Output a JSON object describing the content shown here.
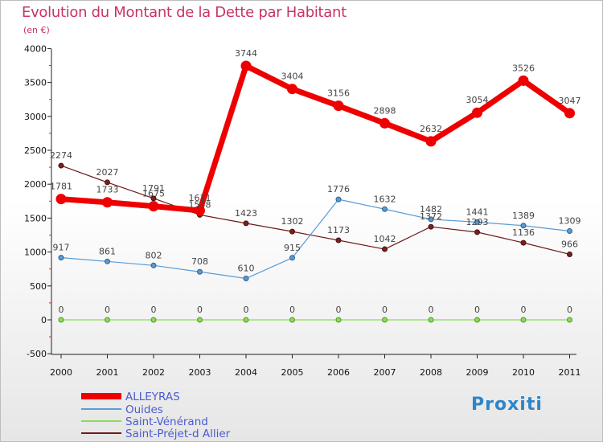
{
  "header": {
    "title": "Evolution du Montant de la Dette par Habitant",
    "subtitle": "(en €)"
  },
  "colors": {
    "title": "#c8336a",
    "ALLEYRAS": "#ee0000",
    "Ouides": "#5b9bd5",
    "Saint-Vénérand": "#88dd55",
    "Saint-Préjet-d Allier": "#6e1a1a",
    "legend_text": "#4a5bd1"
  },
  "chart_data": {
    "type": "line",
    "title": "Evolution du Montant de la Dette par Habitant",
    "subtitle": "(en €)",
    "xlabel": "",
    "ylabel": "",
    "x": [
      "2000",
      "2001",
      "2002",
      "2003",
      "2004",
      "2005",
      "2006",
      "2007",
      "2008",
      "2009",
      "2010",
      "2011"
    ],
    "ylim": [
      -500,
      4000
    ],
    "yticks": [
      "-500",
      "0",
      "500",
      "1000",
      "1500",
      "2000",
      "2500",
      "3000",
      "3500",
      "4000"
    ],
    "grid": false,
    "legend": "bottom-left",
    "series": [
      {
        "name": "ALLEYRAS",
        "values": [
          1781,
          1733,
          1675,
          1611,
          3744,
          3404,
          3156,
          2898,
          2632,
          3054,
          3526,
          3047
        ],
        "labels": [
          "1781",
          "1733",
          "1675",
          "1611",
          "3744",
          "3404",
          "3156",
          "2898",
          "2632",
          "3054",
          "3526",
          "3047"
        ]
      },
      {
        "name": "Ouides",
        "values": [
          917,
          861,
          802,
          708,
          610,
          915,
          1776,
          1632,
          1482,
          1441,
          1389,
          1309
        ],
        "labels": [
          "917",
          "861",
          "802",
          "708",
          "610",
          "915",
          "1776",
          "1632",
          "1482",
          "1441",
          "1389",
          "1309"
        ]
      },
      {
        "name": "Saint-Vénérand",
        "values": [
          0,
          0,
          0,
          0,
          0,
          0,
          0,
          0,
          0,
          0,
          0,
          0
        ],
        "labels": [
          "0",
          "0",
          "0",
          "0",
          "0",
          "0",
          "0",
          "0",
          "0",
          "0",
          "0",
          "0"
        ]
      },
      {
        "name": "Saint-Préjet-d Allier",
        "values": [
          2274,
          2027,
          1791,
          1548,
          1423,
          1302,
          1173,
          1042,
          1372,
          1293,
          1136,
          966
        ],
        "labels": [
          "2274",
          "2027",
          "1791",
          "1548",
          "1423",
          "1302",
          "1173",
          "1042",
          "1372",
          "1293",
          "1136",
          "966"
        ]
      }
    ]
  },
  "logo": {
    "text": "Proxiti"
  }
}
